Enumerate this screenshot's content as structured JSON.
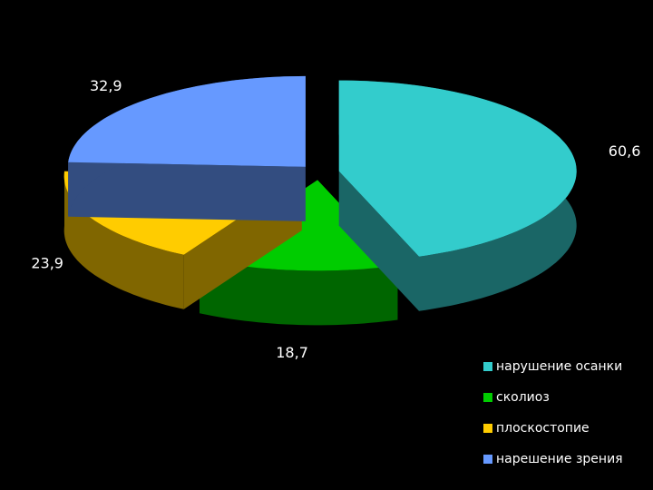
{
  "chart_data": {
    "type": "pie",
    "three_d": true,
    "categories": [
      "нарушение осанки",
      "сколиоз",
      "плоскостопие",
      "нарешение зрения"
    ],
    "values": [
      60.6,
      18.7,
      23.9,
      32.9
    ],
    "value_labels": [
      "60,6",
      "18,7",
      "23,9",
      "32,9"
    ],
    "colors": [
      "#33cccc",
      "#00cc00",
      "#ffcc00",
      "#6699ff"
    ],
    "legend": "bottom-right"
  }
}
